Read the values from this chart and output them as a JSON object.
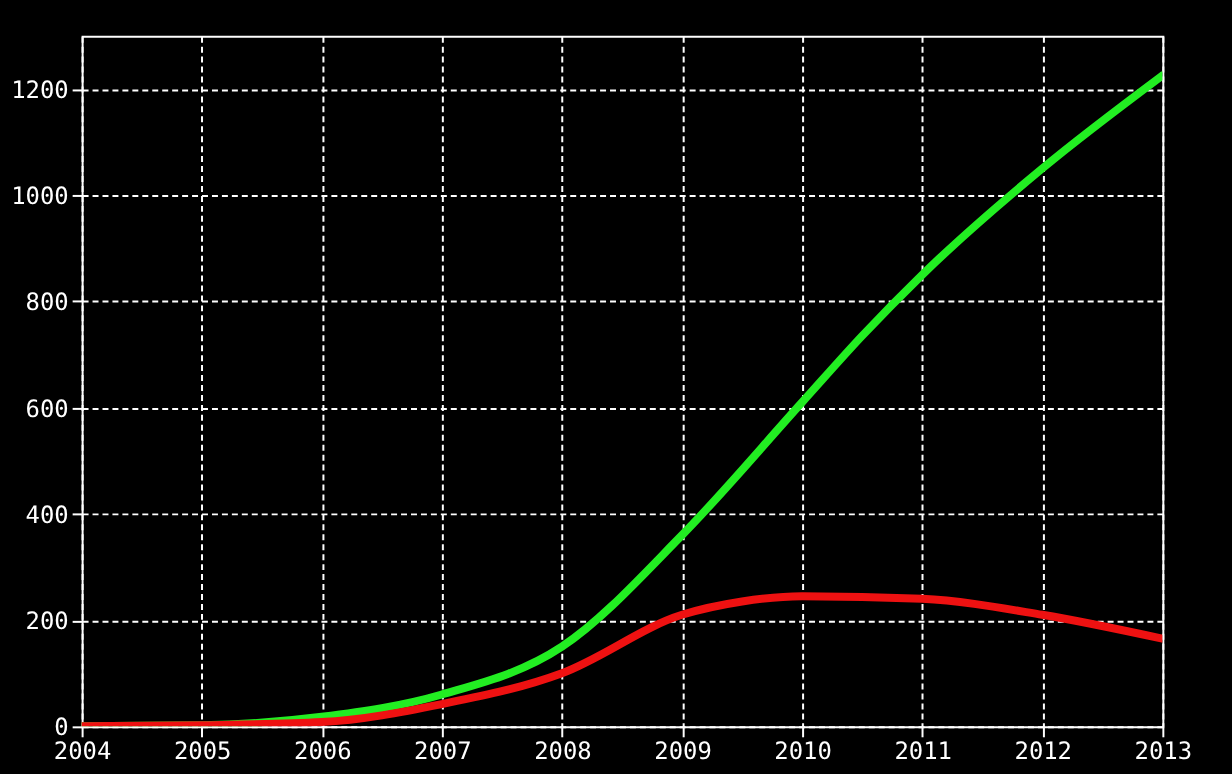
{
  "chart_data": {
    "type": "line",
    "xlim": [
      2004,
      2013
    ],
    "xticks": [
      2004,
      2005,
      2006,
      2007,
      2008,
      2009,
      2010,
      2011,
      2012,
      2013
    ],
    "ylim": [
      0,
      1300
    ],
    "yticks": [
      0,
      200,
      400,
      600,
      800,
      1000,
      1200
    ],
    "grid": true,
    "marker": "none",
    "line_style": "solid",
    "series": [
      {
        "color": "#22ee22",
        "x": [
          2004,
          2005,
          2006,
          2007,
          2008,
          2009,
          2010,
          2010.5,
          2011,
          2012,
          2013
        ],
        "values": [
          0,
          2,
          18,
          60,
          150,
          360,
          610,
          735,
          850,
          1050,
          1225
        ]
      },
      {
        "color": "#ee1111",
        "x": [
          2004,
          2005,
          2006,
          2007,
          2008,
          2009,
          2009.5,
          2010,
          2011,
          2012,
          2013
        ],
        "values": [
          0,
          2,
          8,
          42,
          100,
          210,
          235,
          245,
          240,
          210,
          165
        ]
      }
    ]
  }
}
